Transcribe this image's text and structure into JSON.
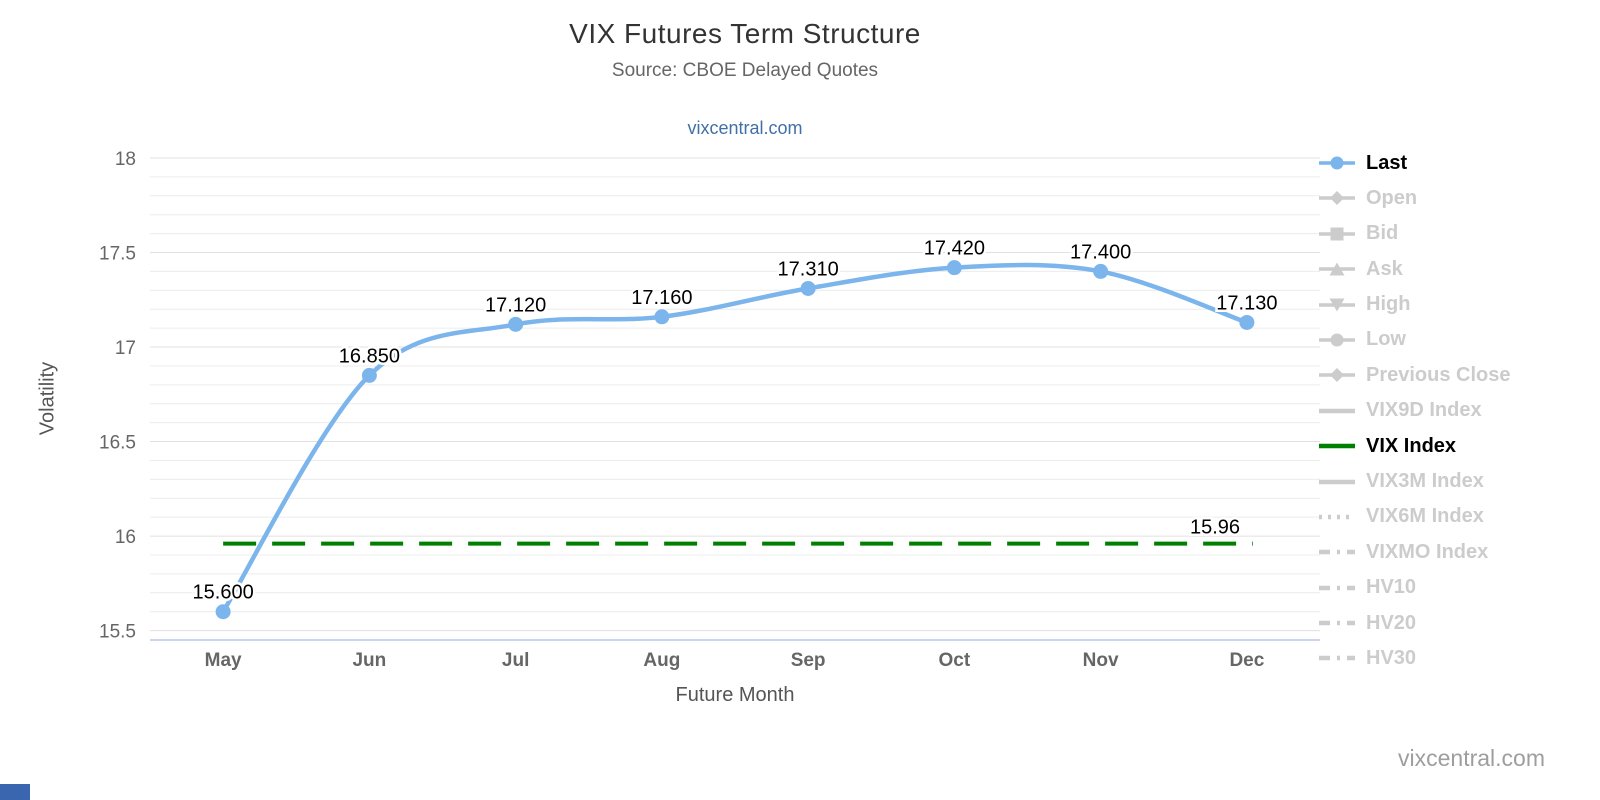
{
  "header": {
    "title": "VIX Futures Term Structure",
    "subtitle": "Source: CBOE Delayed Quotes",
    "link": "vixcentral.com"
  },
  "footer": {
    "watermark": "vixcentral.com"
  },
  "chart_data": {
    "type": "line",
    "title": "VIX Futures Term Structure",
    "subtitle": "Source: CBOE Delayed Quotes",
    "xlabel": "Future Month",
    "ylabel": "Volatility",
    "categories": [
      "May",
      "Jun",
      "Jul",
      "Aug",
      "Sep",
      "Oct",
      "Nov",
      "Dec"
    ],
    "series": [
      {
        "name": "Last",
        "type": "spline",
        "color": "#7cb5ec",
        "values": [
          15.6,
          16.85,
          17.12,
          17.16,
          17.31,
          17.42,
          17.4,
          17.13
        ],
        "labels": [
          "15.600",
          "16.850",
          "17.120",
          "17.160",
          "17.310",
          "17.420",
          "17.400",
          "17.130"
        ]
      },
      {
        "name": "VIX Index",
        "type": "horizontal-dashed",
        "color": "#008000",
        "value": 15.96,
        "label": "15.96"
      }
    ],
    "ylim": [
      15.5,
      18
    ],
    "y_major_ticks": [
      18,
      17.5,
      17,
      16.5,
      16,
      15.5
    ],
    "y_tick_labels": [
      "18",
      "17.5",
      "17",
      "16.5",
      "16",
      "15.5"
    ],
    "minor_tick_interval": 0.1,
    "grid": true,
    "legend_position": "right"
  },
  "legend": {
    "items": [
      {
        "label": "Last",
        "marker": "circle",
        "style": "solid",
        "color": "#7cb5ec",
        "active": true
      },
      {
        "label": "Open",
        "marker": "diamond",
        "style": "solid",
        "color": "#cccccc",
        "active": false
      },
      {
        "label": "Bid",
        "marker": "square",
        "style": "solid",
        "color": "#cccccc",
        "active": false
      },
      {
        "label": "Ask",
        "marker": "triangle-up",
        "style": "solid",
        "color": "#cccccc",
        "active": false
      },
      {
        "label": "High",
        "marker": "triangle-down",
        "style": "solid",
        "color": "#cccccc",
        "active": false
      },
      {
        "label": "Low",
        "marker": "circle",
        "style": "solid",
        "color": "#cccccc",
        "active": false
      },
      {
        "label": "Previous Close",
        "marker": "diamond",
        "style": "solid",
        "color": "#cccccc",
        "active": false
      },
      {
        "label": "VIX9D Index",
        "marker": "none",
        "style": "line",
        "color": "#cccccc",
        "active": false
      },
      {
        "label": "VIX Index",
        "marker": "none",
        "style": "line",
        "color": "#008000",
        "active": true
      },
      {
        "label": "VIX3M Index",
        "marker": "none",
        "style": "line",
        "color": "#cccccc",
        "active": false
      },
      {
        "label": "VIX6M Index",
        "marker": "none",
        "style": "dotted",
        "color": "#cccccc",
        "active": false
      },
      {
        "label": "VIXMO Index",
        "marker": "none",
        "style": "dashdot",
        "color": "#cccccc",
        "active": false
      },
      {
        "label": "HV10",
        "marker": "none",
        "style": "dashdot",
        "color": "#cccccc",
        "active": false
      },
      {
        "label": "HV20",
        "marker": "none",
        "style": "dashdot",
        "color": "#cccccc",
        "active": false
      },
      {
        "label": "HV30",
        "marker": "none",
        "style": "dashdot",
        "color": "#cccccc",
        "active": false
      }
    ]
  },
  "colors": {
    "series_last": "#7cb5ec",
    "vix_index": "#008000",
    "grid_major": "#e0e0e0",
    "grid_minor": "#ececec",
    "axis_line": "#ccd6eb",
    "tick_label": "#666666",
    "legend_active": "#000000",
    "legend_inactive": "#cccccc",
    "title": "#333333",
    "subtitle": "#666666",
    "link": "#4170a7",
    "watermark": "#9e9e9e",
    "corner_widget": "#3a66b0"
  }
}
